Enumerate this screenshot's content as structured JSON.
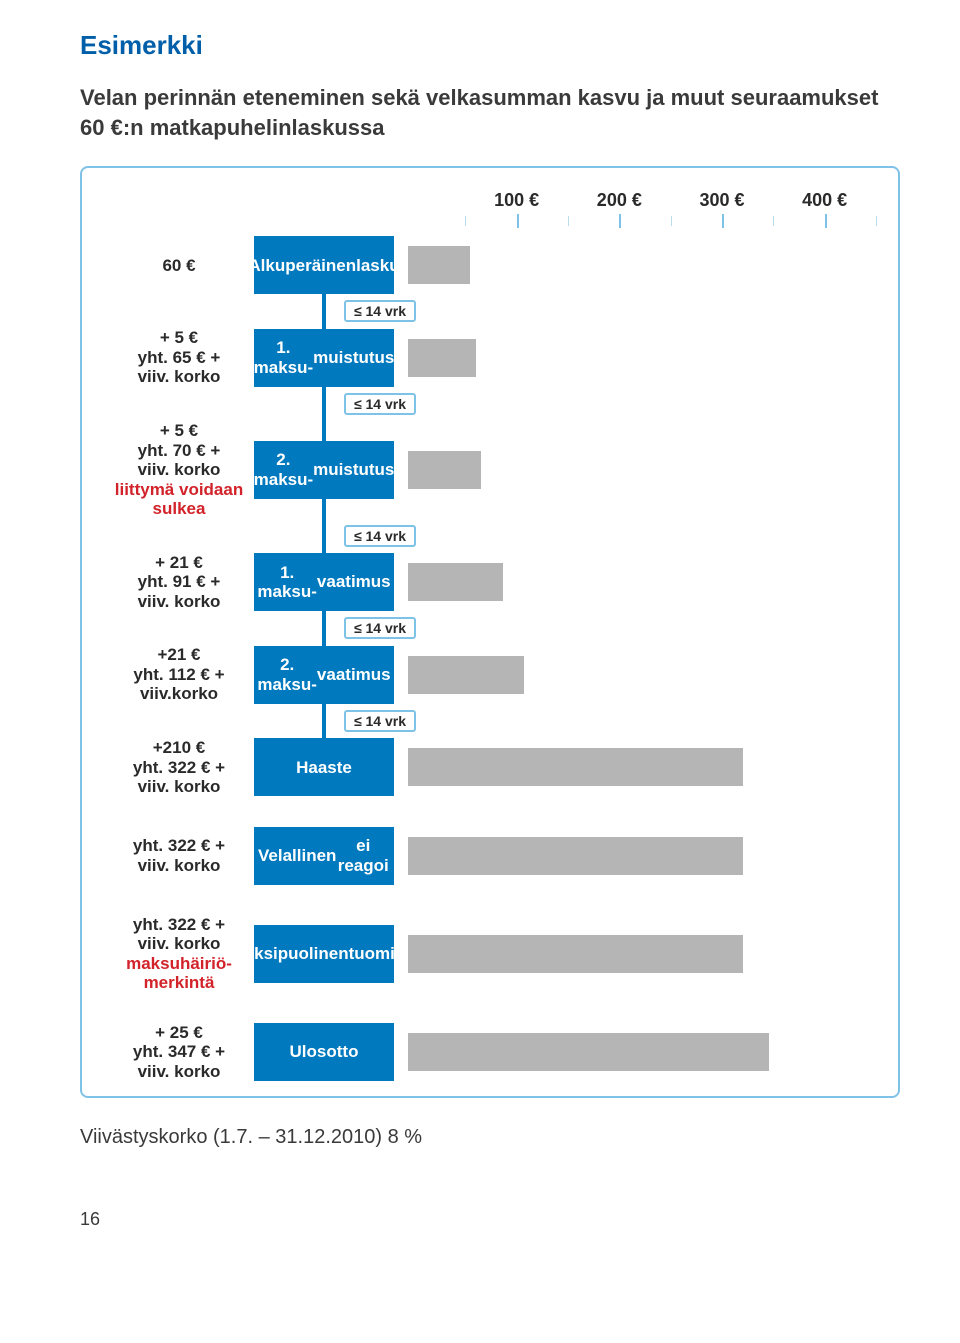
{
  "title": "Esimerkki",
  "subtitle": "Velan perinnän eteneminen sekä velkasumman kasvu ja muut seuraamukset 60 €:n matkapuhelinlaskussa",
  "footnote": "Viivästyskorko (1.7. – 31.12.2010) 8 %",
  "page_number": "16",
  "colors": {
    "frame_border": "#7fc2e8",
    "stage_bg": "#0079be",
    "stage_text": "#ffffff",
    "bar_fill": "#b5b5b5",
    "heading_blue": "#005fa8",
    "text": "#3a3a3a",
    "highlight_red": "#d2232a",
    "tick_minor": "#b9dcef"
  },
  "axis": {
    "min": 0,
    "max": 450,
    "ticks_major": [
      100,
      200,
      300,
      400
    ],
    "tick_labels": [
      "100 €",
      "200 €",
      "300 €",
      "400 €"
    ],
    "ticks_minor": [
      50,
      150,
      250,
      350,
      450
    ],
    "label_fontsize": 18
  },
  "vrk_label": "≤ 14 vrk",
  "blocks": [
    {
      "id": "block1",
      "rows": [
        {
          "left_line1": "60 €",
          "left_line2": "",
          "left_line3": "",
          "stage_line1": "Alkuperäinen",
          "stage_line2": "lasku",
          "value": 60
        },
        {
          "vrk": true
        },
        {
          "left_line1": "+ 5 €",
          "left_line2": "yht. 65 € +",
          "left_line3": "viiv. korko",
          "stage_line1": "1. maksu-",
          "stage_line2": "muistutus",
          "value": 65
        },
        {
          "vrk": true
        },
        {
          "left_line1": "+ 5 €",
          "left_line2": "yht. 70 € +",
          "left_line3": "viiv. korko",
          "red_line1": "liittymä voidaan",
          "red_line2": "sulkea",
          "stage_line1": "2. maksu-",
          "stage_line2": "muistutus",
          "value": 70
        },
        {
          "vrk": true
        },
        {
          "left_line1": "+ 21 €",
          "left_line2": "yht. 91 € +",
          "left_line3": "viiv. korko",
          "stage_line1": "1. maksu-",
          "stage_line2": "vaatimus",
          "value": 91
        },
        {
          "vrk": true
        },
        {
          "left_line1": "+21 €",
          "left_line2": "yht. 112 € +",
          "left_line3": "viiv.korko",
          "stage_line1": "2. maksu-",
          "stage_line2": "vaatimus",
          "value": 112
        },
        {
          "vrk": true
        },
        {
          "left_line1": "+210 €",
          "left_line2": "yht. 322 € +",
          "left_line3": "viiv. korko",
          "stage_line1": "Haaste",
          "stage_line2": "",
          "value": 322
        }
      ]
    },
    {
      "id": "block2",
      "rows": [
        {
          "left_line1": "yht. 322 € +",
          "left_line2": "viiv. korko",
          "left_line3": "",
          "stage_line1": "Velallinen",
          "stage_line2": "ei reagoi",
          "value": 322
        }
      ]
    },
    {
      "id": "block3",
      "rows": [
        {
          "left_line1": "yht. 322 € +",
          "left_line2": "viiv. korko",
          "left_line3": "",
          "red_line1": "maksuhäiriö-",
          "red_line2": "merkintä",
          "stage_line1": "Yksipuolinen",
          "stage_line2": "tuomio",
          "value": 322
        }
      ]
    },
    {
      "id": "block4",
      "rows": [
        {
          "left_line1": "+ 25 €",
          "left_line2": "yht. 347 € +",
          "left_line3": "viiv. korko",
          "stage_line1": "Ulosotto",
          "stage_line2": "",
          "value": 347
        }
      ]
    }
  ]
}
